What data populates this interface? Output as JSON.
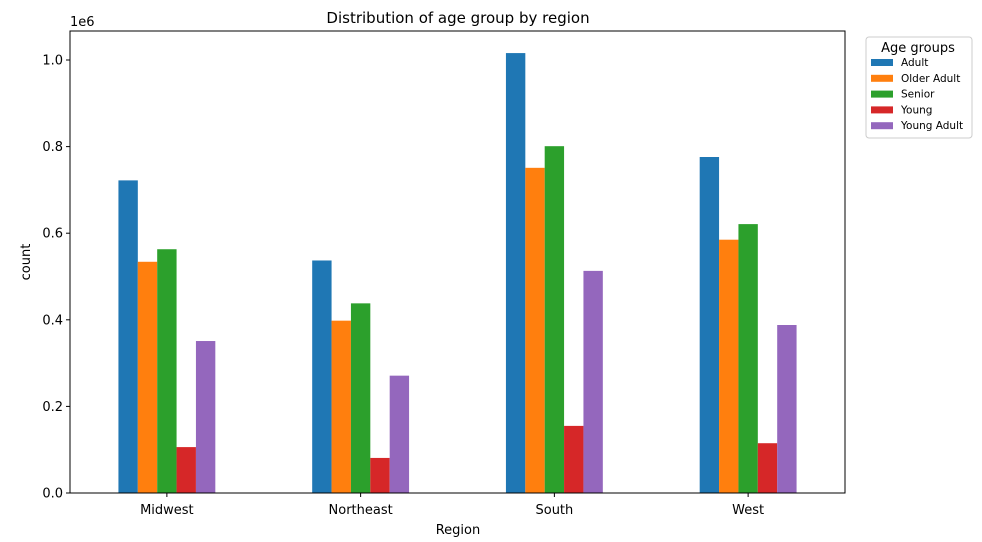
{
  "chart_data": {
    "type": "bar",
    "title": "Distribution of age group by region",
    "xlabel": "Region",
    "ylabel": "count",
    "y_offset_label": "1e6",
    "categories": [
      "Midwest",
      "Northeast",
      "South",
      "West"
    ],
    "series": [
      {
        "name": "Adult",
        "color": "#1f77b4",
        "values": [
          722000,
          537000,
          1016000,
          776000
        ]
      },
      {
        "name": "Older Adult",
        "color": "#ff7f0e",
        "values": [
          534000,
          398000,
          751000,
          585000
        ]
      },
      {
        "name": "Senior",
        "color": "#2ca02c",
        "values": [
          563000,
          438000,
          801000,
          621000
        ]
      },
      {
        "name": "Young",
        "color": "#d62728",
        "values": [
          106000,
          81000,
          155000,
          115000
        ]
      },
      {
        "name": "Young Adult",
        "color": "#9467bd",
        "values": [
          351000,
          271000,
          513000,
          388000
        ]
      }
    ],
    "ylim": [
      0,
      1067000
    ],
    "yticks": [
      0,
      200000,
      400000,
      600000,
      800000,
      1000000
    ],
    "ytick_labels": [
      "0.0",
      "0.2",
      "0.4",
      "0.6",
      "0.8",
      "1.0"
    ],
    "grid": false,
    "legend": {
      "title": "Age groups",
      "placement": "outside-top-right"
    }
  }
}
